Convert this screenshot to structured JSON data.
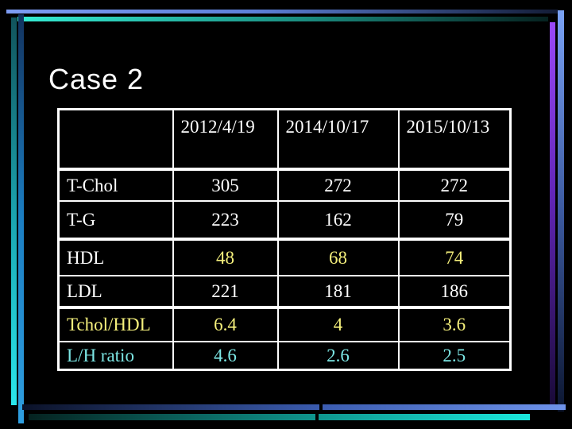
{
  "slide": {
    "title": "Case 2",
    "colors": {
      "background": "#000000",
      "title_text": "#ffffff",
      "table_border": "#ffffff",
      "white_text": "#ffffff",
      "yellow_text": "#f5f07c",
      "cyan_text": "#7ce6e4",
      "top_bar_blue": "#7d9cf2",
      "top_bar_cyan": "#35ecd4",
      "left_bar_teal": "#2ae6ec",
      "left_bar_blue": "#1b7ec2",
      "right_bar_purple": "#9a49f8",
      "right_bar_blue": "#7aa2f5",
      "bottom_bar_blue": "#6e93ea",
      "bottom_bar_cyan": "#1ae8dc"
    },
    "table": {
      "header": [
        "",
        "2012/4/19",
        "2014/10/17",
        "2015/10/13"
      ],
      "rows": [
        {
          "label": "T-Chol",
          "values": [
            "305",
            "272",
            "272"
          ],
          "label_color": "white",
          "value_color": "white",
          "group_start": false
        },
        {
          "label": "T-G",
          "values": [
            "223",
            "162",
            "79"
          ],
          "label_color": "white",
          "value_color": "white",
          "group_start": false
        },
        {
          "label": "HDL",
          "values": [
            "48",
            "68",
            "74"
          ],
          "label_color": "white",
          "value_color": "yellow",
          "group_start": true
        },
        {
          "label": "LDL",
          "values": [
            "221",
            "181",
            "186"
          ],
          "label_color": "white",
          "value_color": "white",
          "group_start": false
        },
        {
          "label": "Tchol/HDL",
          "values": [
            "6.4",
            "4",
            "3.6"
          ],
          "label_color": "yellow",
          "value_color": "yellow",
          "group_start": true
        },
        {
          "label": "L/H ratio",
          "values": [
            "4.6",
            "2.6",
            "2.5"
          ],
          "label_color": "cyan",
          "value_color": "cyan",
          "group_start": false
        }
      ]
    }
  }
}
